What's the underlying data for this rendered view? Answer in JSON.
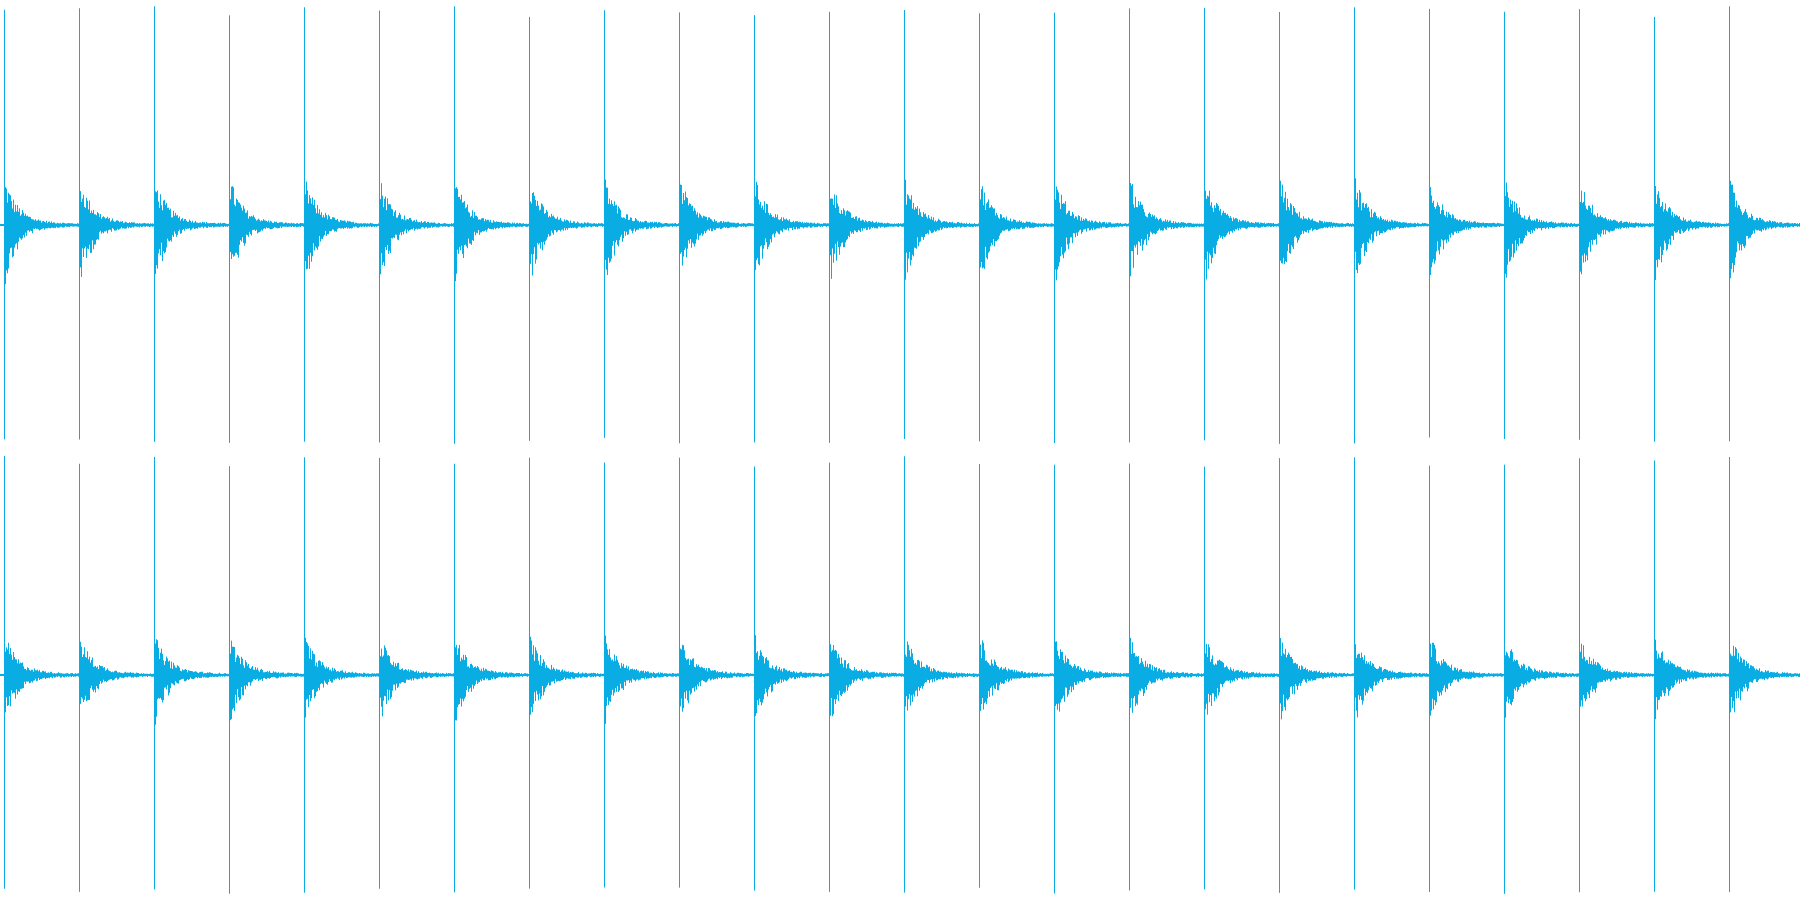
{
  "waveform": {
    "color": "#09ade4"
  }
}
